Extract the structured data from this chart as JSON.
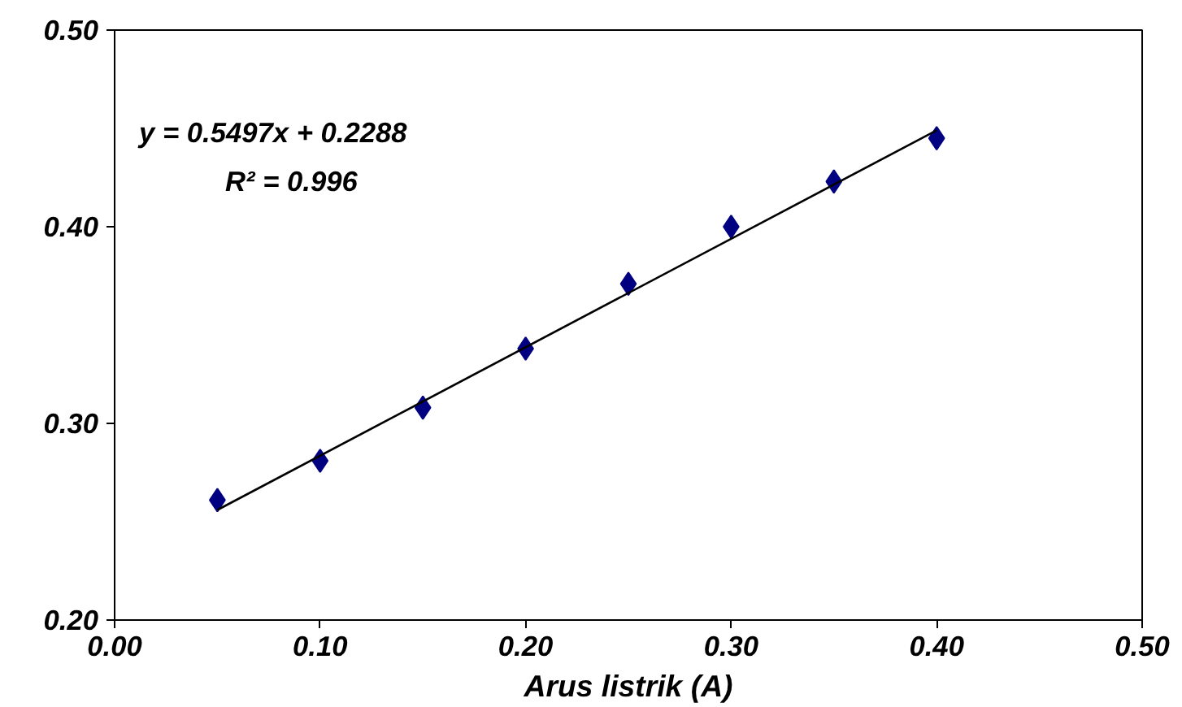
{
  "chart_data": {
    "type": "scatter",
    "xlabel": "Arus listrik (A)",
    "marker": "diamond",
    "grid": false,
    "xlim": [
      0.0,
      0.5
    ],
    "xticks": [
      {
        "value": 0.0,
        "label": "0.00"
      },
      {
        "value": 0.1,
        "label": "0.10"
      },
      {
        "value": 0.2,
        "label": "0.20"
      },
      {
        "value": 0.3,
        "label": "0.30"
      },
      {
        "value": 0.4,
        "label": "0.40"
      },
      {
        "value": 0.5,
        "label": "0.50"
      }
    ],
    "ylim": [
      0.2,
      0.5
    ],
    "yticks": [
      {
        "value": 0.2,
        "label": "0.20"
      },
      {
        "value": 0.3,
        "label": "0.30"
      },
      {
        "value": 0.4,
        "label": "0.40"
      },
      {
        "value": 0.5,
        "label": "0.50"
      }
    ],
    "x": [
      0.05,
      0.1,
      0.15,
      0.2,
      0.25,
      0.3,
      0.35,
      0.4
    ],
    "series": [
      {
        "color": "#000080",
        "values": [
          0.261,
          0.281,
          0.308,
          0.338,
          0.371,
          0.4,
          0.423,
          0.445
        ]
      },
      {
        "type": "line",
        "color": "#000000",
        "marker": "none",
        "x": [
          0.05,
          0.4
        ],
        "values": [
          0.256,
          0.449
        ]
      }
    ],
    "annotations": [
      "y = 0.5497x + 0.2288",
      "R² = 0.996"
    ]
  }
}
